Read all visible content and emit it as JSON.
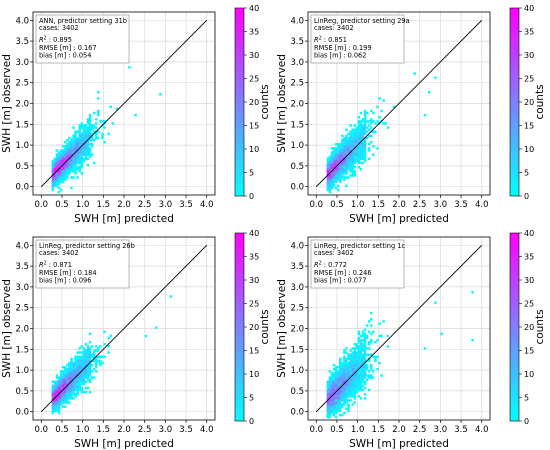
{
  "colormap": {
    "low": "#00ffff",
    "high": "#ff00ff"
  },
  "chart_data": [
    {
      "type": "heatmap",
      "title": "",
      "xlabel": "SWH [m] predicted",
      "ylabel": "SWH [m] observed",
      "xlim": [
        -0.2,
        4.2
      ],
      "ylim": [
        -0.2,
        4.2
      ],
      "x_ticks": [
        "0.0",
        "0.5",
        "1.0",
        "1.5",
        "2.0",
        "2.5",
        "3.0",
        "3.5",
        "4.0"
      ],
      "y_ticks": [
        "0.0",
        "0.5",
        "1.0",
        "1.5",
        "2.0",
        "2.5",
        "3.0",
        "3.5",
        "4.0"
      ],
      "grid": true,
      "identity_line": true,
      "colorbar": {
        "label": "counts",
        "range": [
          0,
          40
        ],
        "ticks": [
          "0",
          "5",
          "10",
          "15",
          "20",
          "25",
          "30",
          "35",
          "40"
        ]
      },
      "annotation": {
        "setting": "ANN, predictor setting 31b",
        "cases": "cases: 3402",
        "r2_label": "R",
        "r2_sup": "2",
        "r2_value": " :  0.895",
        "rmse": "RMSE [m] :  0.167",
        "bias": "bias [m] :  0.054"
      },
      "metrics": {
        "cases": 3402,
        "r2": 0.895,
        "rmse": 0.167,
        "bias": 0.054
      },
      "spread": 0.17,
      "xmax": 3.0,
      "outliers": [
        [
          2.3,
          1.7
        ],
        [
          2.9,
          2.2
        ],
        [
          1.4,
          2.3
        ],
        [
          0.9,
          1.4
        ],
        [
          2.1,
          2.9
        ]
      ]
    },
    {
      "type": "heatmap",
      "title": "",
      "xlabel": "SWH [m] predicted",
      "ylabel": "SWH [m] observed",
      "xlim": [
        -0.2,
        4.2
      ],
      "ylim": [
        -0.2,
        4.2
      ],
      "x_ticks": [
        "0.0",
        "0.5",
        "1.0",
        "1.5",
        "2.0",
        "2.5",
        "3.0",
        "3.5",
        "4.0"
      ],
      "y_ticks": [
        "0.0",
        "0.5",
        "1.0",
        "1.5",
        "2.0",
        "2.5",
        "3.0",
        "3.5",
        "4.0"
      ],
      "grid": true,
      "identity_line": true,
      "colorbar": {
        "label": "counts",
        "range": [
          0,
          40
        ],
        "ticks": [
          "0",
          "5",
          "10",
          "15",
          "20",
          "25",
          "30",
          "35",
          "40"
        ]
      },
      "annotation": {
        "setting": "LinReg, predictor setting 29a",
        "cases": "cases: 3402",
        "r2_label": "R",
        "r2_sup": "2",
        "r2_value": " :  0.851",
        "rmse": "RMSE [m] :  0.199",
        "bias": "bias [m] :  0.062"
      },
      "metrics": {
        "cases": 3402,
        "r2": 0.851,
        "rmse": 0.199,
        "bias": 0.062
      },
      "spread": 0.2,
      "xmax": 2.9,
      "outliers": [
        [
          2.7,
          2.3
        ],
        [
          2.9,
          2.6
        ],
        [
          1.5,
          2.1
        ],
        [
          2.6,
          1.7
        ],
        [
          2.4,
          2.7
        ]
      ]
    },
    {
      "type": "heatmap",
      "title": "",
      "xlabel": "SWH [m] predicted",
      "ylabel": "SWH [m] observed",
      "xlim": [
        -0.2,
        4.2
      ],
      "ylim": [
        -0.2,
        4.2
      ],
      "x_ticks": [
        "0.0",
        "0.5",
        "1.0",
        "1.5",
        "2.0",
        "2.5",
        "3.0",
        "3.5",
        "4.0"
      ],
      "y_ticks": [
        "0.0",
        "0.5",
        "1.0",
        "1.5",
        "2.0",
        "2.5",
        "3.0",
        "3.5",
        "4.0"
      ],
      "grid": true,
      "identity_line": true,
      "colorbar": {
        "label": "counts",
        "range": [
          0,
          40
        ],
        "ticks": [
          "0",
          "5",
          "10",
          "15",
          "20",
          "25",
          "30",
          "35",
          "40"
        ]
      },
      "annotation": {
        "setting": "LinReg, predictor setting 26b",
        "cases": "cases: 3402",
        "r2_label": "R",
        "r2_sup": "2",
        "r2_value": " :  0.871",
        "rmse": "RMSE [m] :  0.184",
        "bias": "bias [m] :  0.096"
      },
      "metrics": {
        "cases": 3402,
        "r2": 0.871,
        "rmse": 0.184,
        "bias": 0.096
      },
      "spread": 0.18,
      "xmax": 3.0,
      "outliers": [
        [
          3.1,
          2.8
        ],
        [
          2.8,
          2.0
        ],
        [
          1.2,
          1.9
        ],
        [
          2.5,
          1.8
        ],
        [
          0.6,
          1.0
        ]
      ]
    },
    {
      "type": "heatmap",
      "title": "",
      "xlabel": "SWH [m] predicted",
      "ylabel": "SWH [m] observed",
      "xlim": [
        -0.2,
        4.2
      ],
      "ylim": [
        -0.2,
        4.2
      ],
      "x_ticks": [
        "0.0",
        "0.5",
        "1.0",
        "1.5",
        "2.0",
        "2.5",
        "3.0",
        "3.5",
        "4.0"
      ],
      "y_ticks": [
        "0.0",
        "0.5",
        "1.0",
        "1.5",
        "2.0",
        "2.5",
        "3.0",
        "3.5",
        "4.0"
      ],
      "grid": true,
      "identity_line": true,
      "colorbar": {
        "label": "counts",
        "range": [
          0,
          40
        ],
        "ticks": [
          "0",
          "5",
          "10",
          "15",
          "20",
          "25",
          "30",
          "35",
          "40"
        ]
      },
      "annotation": {
        "setting": "LinReg, predictor setting 1c",
        "cases": "cases: 3402",
        "r2_label": "R",
        "r2_sup": "2",
        "r2_value": " :  0.772",
        "rmse": "RMSE [m] :  0.246",
        "bias": "bias [m] :  0.077"
      },
      "metrics": {
        "cases": 3402,
        "r2": 0.772,
        "rmse": 0.246,
        "bias": 0.077
      },
      "spread": 0.25,
      "xmax": 2.7,
      "outliers": [
        [
          3.75,
          2.85
        ],
        [
          3.8,
          1.7
        ],
        [
          3.05,
          1.85
        ],
        [
          2.9,
          2.6
        ],
        [
          1.3,
          2.4
        ],
        [
          2.6,
          1.5
        ]
      ]
    }
  ]
}
